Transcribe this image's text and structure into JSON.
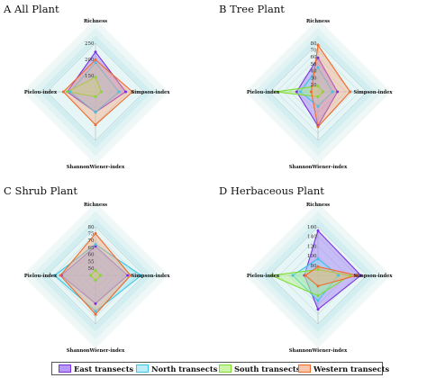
{
  "series_styles": [
    {
      "name": "East transects",
      "stroke": "#7b2fe0",
      "fill": "#9b6cf5"
    },
    {
      "name": "North transects",
      "stroke": "#3ec4e6",
      "fill": "#8fe3f3"
    },
    {
      "name": "South transects",
      "stroke": "#7fdc2e",
      "fill": "#aef07b"
    },
    {
      "name": "Western transects",
      "stroke": "#f06a2a",
      "fill": "#f7a47b"
    }
  ],
  "chart_data": [
    {
      "type": "radar",
      "title": "A All Plant",
      "axes": [
        "Richness",
        "Simpson-index",
        "ShannonWiener-index",
        "Pielou-index"
      ],
      "ticks": [
        "150",
        "200",
        "250"
      ],
      "series": [
        {
          "name": "East transects",
          "values": [
            0.82,
            0.62,
            0.42,
            0.58
          ]
        },
        {
          "name": "North transects",
          "values": [
            0.6,
            0.48,
            0.42,
            0.52
          ]
        },
        {
          "name": "South transects",
          "values": [
            0.3,
            0.12,
            0.1,
            0.58
          ]
        },
        {
          "name": "Western transects",
          "values": [
            0.66,
            0.76,
            0.68,
            0.66
          ]
        }
      ]
    },
    {
      "type": "radar",
      "title": "B Tree Plant",
      "axes": [
        "Richness",
        "Simpson-index",
        "ShannonWiener-index",
        "Pielou-index"
      ],
      "ticks": [
        "20",
        "30",
        "40",
        "50",
        "60",
        "70",
        "80"
      ],
      "series": [
        {
          "name": "East transects",
          "values": [
            0.7,
            0.4,
            0.7,
            0.44
          ]
        },
        {
          "name": "North transects",
          "values": [
            0.5,
            0.3,
            0.3,
            0.36
          ]
        },
        {
          "name": "South transects",
          "values": [
            0.12,
            0.1,
            0.1,
            0.88
          ]
        },
        {
          "name": "Western transects",
          "values": [
            0.96,
            0.66,
            0.72,
            0.14
          ]
        }
      ]
    },
    {
      "type": "radar",
      "title": "C Shrub Plant",
      "axes": [
        "Richness",
        "Simpson-index",
        "ShannonWiener-index",
        "Pielou-index"
      ],
      "ticks": [
        "50",
        "55",
        "60",
        "65",
        "70",
        "75",
        "80"
      ],
      "series": [
        {
          "name": "East transects",
          "values": [
            0.6,
            0.66,
            0.58,
            0.7
          ]
        },
        {
          "name": "North transects",
          "values": [
            0.64,
            0.94,
            0.74,
            0.84
          ]
        },
        {
          "name": "South transects",
          "values": [
            0.1,
            0.1,
            0.1,
            0.1
          ]
        },
        {
          "name": "Western transects",
          "values": [
            0.86,
            0.72,
            0.8,
            0.72
          ]
        }
      ]
    },
    {
      "type": "radar",
      "title": "D Herbaceous Plant",
      "axes": [
        "Richness",
        "Simpson-index",
        "ShannonWiener-index",
        "Pielou-index"
      ],
      "ticks": [
        "80",
        "100",
        "120",
        "140",
        "160"
      ],
      "series": [
        {
          "name": "East transects",
          "values": [
            0.92,
            0.88,
            0.7,
            0.28
          ]
        },
        {
          "name": "North transects",
          "values": [
            0.34,
            0.42,
            0.52,
            0.52
          ]
        },
        {
          "name": "South transects",
          "values": [
            0.12,
            0.66,
            0.42,
            0.96
          ]
        },
        {
          "name": "Western transects",
          "values": [
            0.18,
            0.8,
            0.22,
            0.26
          ]
        }
      ]
    }
  ]
}
